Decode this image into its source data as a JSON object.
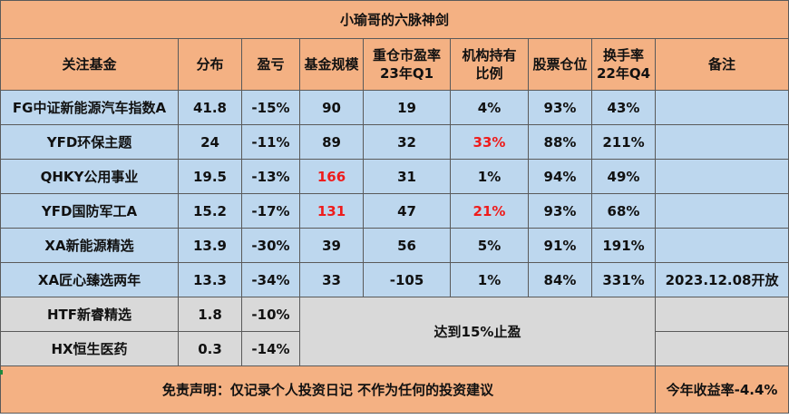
{
  "title": "小瑜哥的六脉神剑",
  "headers": [
    [
      "关注基金"
    ],
    [
      "分布"
    ],
    [
      "盈亏"
    ],
    [
      "基金规模"
    ],
    [
      "重仓市盈率",
      "23年Q1"
    ],
    [
      "机构持有",
      "比例"
    ],
    [
      "股票仓位"
    ],
    [
      "换手率",
      "22年Q4"
    ],
    [
      "备注"
    ]
  ],
  "rows": [
    {
      "name": "FG中证新能源汽车指数A",
      "dist": "41.8",
      "pnl": "-15%",
      "scale": "90",
      "pe": "19",
      "inst": "4%",
      "position": "93%",
      "turnover": "43%",
      "note": ""
    },
    {
      "name": "YFD环保主题",
      "dist": "24",
      "pnl": "-11%",
      "scale": "89",
      "pe": "32",
      "inst": "33%",
      "position": "88%",
      "turnover": "211%",
      "note": ""
    },
    {
      "name": "QHKY公用事业",
      "dist": "19.5",
      "pnl": "-13%",
      "scale": "166",
      "pe": "31",
      "inst": "1%",
      "position": "94%",
      "turnover": "49%",
      "note": ""
    },
    {
      "name": "YFD国防军工A",
      "dist": "15.2",
      "pnl": "-17%",
      "scale": "131",
      "pe": "47",
      "inst": "21%",
      "position": "93%",
      "turnover": "68%",
      "note": ""
    },
    {
      "name": "XA新能源精选",
      "dist": "13.9",
      "pnl": "-30%",
      "scale": "39",
      "pe": "56",
      "inst": "5%",
      "position": "91%",
      "turnover": "191%",
      "note": ""
    },
    {
      "name": "XA匠心臻选两年",
      "dist": "13.3",
      "pnl": "-34%",
      "scale": "33",
      "pe": "-105",
      "inst": "1%",
      "position": "84%",
      "turnover": "331%",
      "note": "2023.12.08开放"
    }
  ],
  "gray_rows": [
    {
      "name": "HTF新睿精选",
      "dist": "1.8",
      "pnl": "-10%"
    },
    {
      "name": "HX恒生医药",
      "dist": "0.3",
      "pnl": "-14%"
    }
  ],
  "merged_note": "达到15%止盈",
  "footer": {
    "disclaimer": "免责声明：仅记录个人投资日记 不作为任何的投资建议",
    "ytd": "今年收益率-4.4%"
  },
  "colors": {
    "header_bg": "#f4b183",
    "row_bg": "#bdd7ee",
    "gray_bg": "#d9d9d9",
    "highlight_text": "#ee1c1c"
  }
}
